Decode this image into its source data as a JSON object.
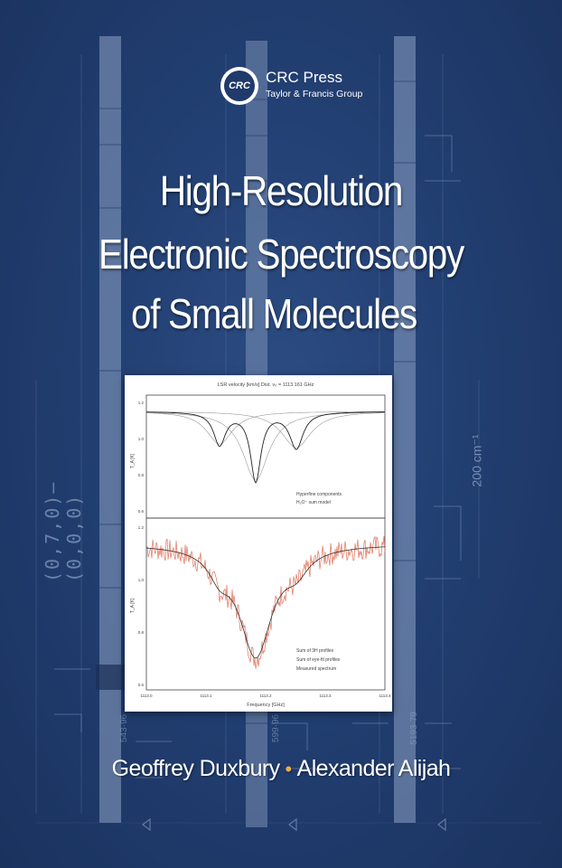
{
  "publisher": {
    "logo_text": "CRC",
    "name": "CRC Press",
    "group": "Taylor & Francis Group"
  },
  "title": {
    "line1": "High-Resolution",
    "line2": "Electronic Spectroscopy",
    "line3": "of Small Molecules"
  },
  "authors": {
    "author1": "Geoffrey Duxbury",
    "separator": "•",
    "author2": "Alexander Alijah"
  },
  "background": {
    "band_label": "(0,7,0)–(0,0,0)",
    "scale_label": "200 cm⁻¹",
    "line_numbers": [
      "543·96",
      "599·96",
      "5193·79"
    ]
  },
  "figure": {
    "top_axis_label": "LSR velocity [km/s]  Dist. v₀ = 1113.161 GHz",
    "top_panel_legend": [
      "Hyperfine components",
      "H₂O⁺ sum model"
    ],
    "bottom_panel_legend": [
      "Sum of 3H profiles",
      "Sum of eye-fit profiles",
      "Measured spectrum"
    ],
    "x_axis_label": "Frequency [GHz]",
    "x_ticks": [
      "1113.0",
      "1113.1",
      "1113.2",
      "1113.3",
      "1113.4"
    ],
    "top_y_ticks": [
      "1.2",
      "1.0",
      "0.8",
      "0.6"
    ],
    "bottom_y_ticks": [
      "1.2",
      "1.0",
      "0.8",
      "0.6"
    ],
    "y_axis_label": "T_A [K]"
  },
  "colors": {
    "background": "#223f72",
    "figure_spectrum": "#e0725a",
    "separator": "#e8b042"
  }
}
